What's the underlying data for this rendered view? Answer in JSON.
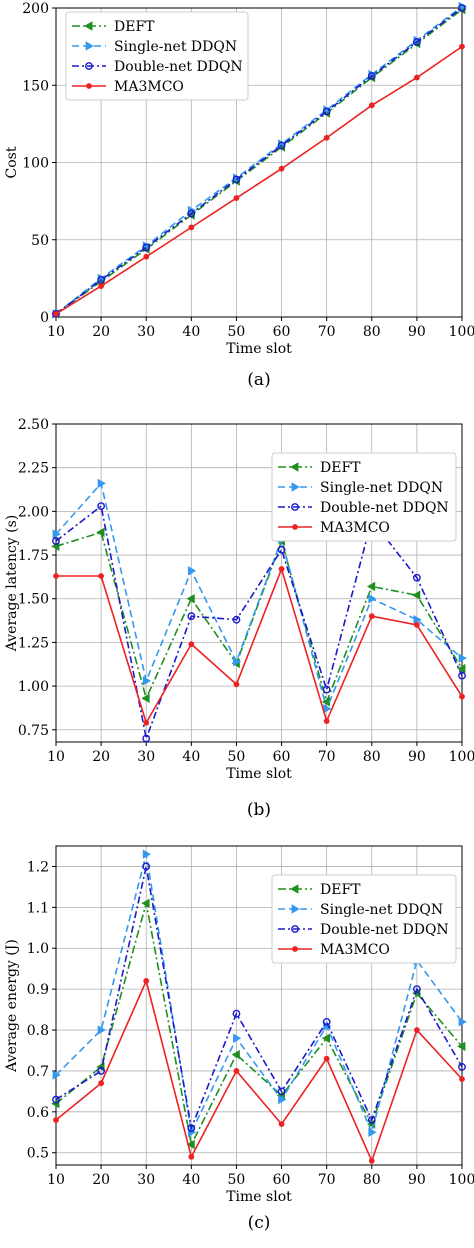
{
  "legend_entries": [
    "DEFT",
    "Single-net DDQN",
    "Double-net DDQN",
    "MA3MCO"
  ],
  "colors": {
    "DEFT": "#1f8f1f",
    "Single-net DDQN": "#3399ee",
    "Double-net DDQN": "#1a1acc",
    "MA3MCO": "#ee2222"
  },
  "chart_data": [
    {
      "type": "line",
      "caption": "(a)",
      "xlabel": "Time slot",
      "ylabel": "Cost",
      "categories": [
        10,
        20,
        30,
        40,
        50,
        60,
        70,
        80,
        90,
        100
      ],
      "x_tick_labels": [
        "10",
        "20",
        "30",
        "40",
        "50",
        "60",
        "70",
        "80",
        "90",
        "100"
      ],
      "ylim": [
        0,
        200
      ],
      "y_ticks": [
        0,
        50,
        100,
        150,
        200
      ],
      "y_tick_labels": [
        "0",
        "50",
        "100",
        "150",
        "200"
      ],
      "grid": true,
      "legend_position": "top-left",
      "series": [
        {
          "name": "DEFT",
          "values": [
            2,
            23,
            44,
            66,
            88,
            110,
            132,
            155,
            177,
            199
          ]
        },
        {
          "name": "Single-net DDQN",
          "values": [
            2,
            25,
            46,
            69,
            90,
            112,
            134,
            157,
            179,
            201
          ]
        },
        {
          "name": "Double-net DDQN",
          "values": [
            2,
            24,
            45,
            67,
            89,
            111,
            133,
            156,
            178,
            200
          ]
        },
        {
          "name": "MA3MCO",
          "values": [
            2,
            20,
            39,
            58,
            77,
            96,
            116,
            137,
            155,
            175
          ]
        }
      ]
    },
    {
      "type": "line",
      "caption": "(b)",
      "xlabel": "Time slot",
      "ylabel": "Average latency (s)",
      "categories": [
        10,
        20,
        30,
        40,
        50,
        60,
        70,
        80,
        90,
        100
      ],
      "x_tick_labels": [
        "10",
        "20",
        "30",
        "40",
        "50",
        "60",
        "70",
        "80",
        "90",
        "100"
      ],
      "ylim": [
        0.68,
        2.5
      ],
      "y_ticks": [
        0.75,
        1.0,
        1.25,
        1.5,
        1.75,
        2.0,
        2.25,
        2.5
      ],
      "y_tick_labels": [
        "0.75",
        "1.00",
        "1.25",
        "1.50",
        "1.75",
        "2.00",
        "2.25",
        "2.50"
      ],
      "grid": true,
      "legend_position": "top-right",
      "series": [
        {
          "name": "DEFT",
          "values": [
            1.8,
            1.88,
            0.93,
            1.5,
            1.13,
            1.83,
            0.91,
            1.57,
            1.52,
            1.1
          ]
        },
        {
          "name": "Single-net DDQN",
          "values": [
            1.87,
            2.16,
            1.03,
            1.66,
            1.14,
            1.84,
            0.87,
            1.5,
            1.38,
            1.16
          ]
        },
        {
          "name": "Double-net DDQN",
          "values": [
            1.83,
            2.03,
            0.7,
            1.4,
            1.38,
            1.78,
            0.98,
            1.95,
            1.62,
            1.06
          ]
        },
        {
          "name": "MA3MCO",
          "values": [
            1.63,
            1.63,
            0.79,
            1.24,
            1.01,
            1.67,
            0.8,
            1.4,
            1.35,
            0.94
          ]
        }
      ]
    },
    {
      "type": "line",
      "caption": "(c)",
      "xlabel": "Time slot",
      "ylabel": "Average energy (J)",
      "categories": [
        10,
        20,
        30,
        40,
        50,
        60,
        70,
        80,
        90,
        100
      ],
      "x_tick_labels": [
        "10",
        "20",
        "30",
        "40",
        "50",
        "60",
        "70",
        "80",
        "90",
        "100"
      ],
      "ylim": [
        0.47,
        1.25
      ],
      "y_ticks": [
        0.5,
        0.6,
        0.7,
        0.8,
        0.9,
        1.0,
        1.1,
        1.2
      ],
      "y_tick_labels": [
        "0.5",
        "0.6",
        "0.7",
        "0.8",
        "0.9",
        "1.0",
        "1.1",
        "1.2"
      ],
      "grid": true,
      "legend_position": "top-right",
      "series": [
        {
          "name": "DEFT",
          "values": [
            0.62,
            0.71,
            1.11,
            0.52,
            0.74,
            0.64,
            0.78,
            0.57,
            0.89,
            0.76
          ]
        },
        {
          "name": "Single-net DDQN",
          "values": [
            0.69,
            0.8,
            1.23,
            0.55,
            0.78,
            0.63,
            0.81,
            0.55,
            0.97,
            0.82
          ]
        },
        {
          "name": "Double-net DDQN",
          "values": [
            0.63,
            0.7,
            1.2,
            0.56,
            0.84,
            0.65,
            0.82,
            0.58,
            0.9,
            0.71
          ]
        },
        {
          "name": "MA3MCO",
          "values": [
            0.58,
            0.67,
            0.92,
            0.49,
            0.7,
            0.57,
            0.73,
            0.48,
            0.8,
            0.68
          ]
        }
      ]
    }
  ]
}
